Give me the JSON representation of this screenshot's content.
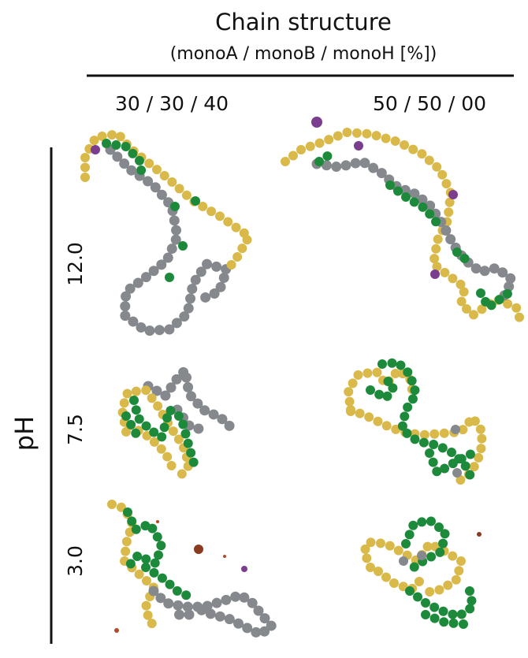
{
  "header": {
    "title": "Chain structure",
    "subtitle": "(monoA / monoB / monoH [%])",
    "columns": [
      "30 / 30 / 40",
      "50 / 50 / 00"
    ]
  },
  "row_axis": {
    "label": "pH",
    "rows": [
      "12.0",
      "7.5",
      "3.0"
    ]
  }
}
